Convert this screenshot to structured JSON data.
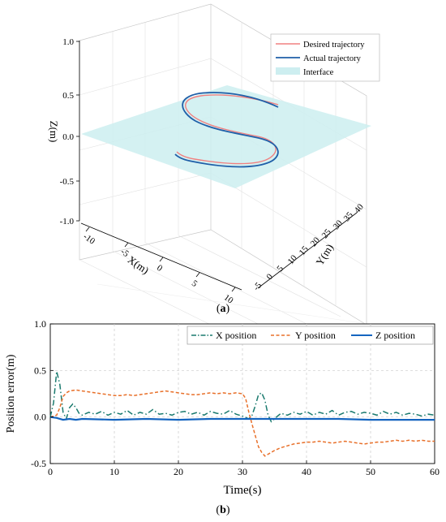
{
  "chart_data": [
    {
      "panel": "(a)",
      "type": "line3d",
      "legend": [
        "Desired trajectory",
        "Actual trajectory",
        "Interface"
      ],
      "legend_position": "top-right",
      "xlabel": "X(m)",
      "ylabel": "Y(m)",
      "zlabel": "Z(m)",
      "x_ticks": [
        "-10",
        "-5",
        "0",
        "5",
        "10"
      ],
      "y_ticks": [
        "-5",
        "0",
        "5",
        "10",
        "15",
        "20",
        "25",
        "30",
        "35",
        "40"
      ],
      "z_ticks": [
        "-1.0",
        "-0.5",
        "0.0",
        "0.5",
        "1.0"
      ],
      "xlim": [
        -10,
        10
      ],
      "ylim": [
        -5,
        40
      ],
      "zlim": [
        -1.0,
        1.0
      ],
      "interface_z": 0.0,
      "colors": {
        "desired": "#f08080",
        "actual": "#1f5fa8",
        "interface": "#cdeef0"
      },
      "series": [
        {
          "name": "Desired trajectory",
          "x": [
            -5.0,
            0.0,
            5.0,
            8.5,
            10.0,
            8.5,
            5.0,
            0.0,
            -5.0,
            -8.5,
            -10.0,
            -8.5,
            -5.0,
            0.0,
            5.0
          ],
          "y": [
            3.0,
            3.2,
            4.0,
            6.3,
            9.5,
            12.7,
            15.0,
            17.0,
            19.0,
            21.3,
            24.5,
            27.7,
            30.0,
            31.5,
            33.0
          ],
          "z": [
            -0.3,
            -0.3,
            -0.28,
            -0.2,
            -0.05,
            0.1,
            0.2,
            0.25,
            0.3,
            0.36,
            0.42,
            0.48,
            0.52,
            0.55,
            0.58
          ]
        },
        {
          "name": "Actual trajectory",
          "x": [
            -5.0,
            0.0,
            5.2,
            8.8,
            10.3,
            8.7,
            5.1,
            0.0,
            -5.2,
            -8.8,
            -10.3,
            -8.6,
            -5.0,
            0.0,
            5.0
          ],
          "y": [
            3.0,
            3.1,
            3.9,
            6.2,
            9.6,
            12.8,
            15.1,
            17.0,
            18.9,
            21.2,
            24.6,
            27.8,
            30.1,
            31.6,
            33.0
          ],
          "z": [
            -0.27,
            -0.25,
            -0.22,
            -0.12,
            0.02,
            0.15,
            0.25,
            0.32,
            0.38,
            0.44,
            0.5,
            0.56,
            0.6,
            0.62,
            0.63
          ]
        }
      ]
    },
    {
      "panel": "(b)",
      "type": "line",
      "xlabel": "Time(s)",
      "ylabel": "Position error(m)",
      "xlim": [
        0,
        60
      ],
      "ylim": [
        -0.5,
        1.0
      ],
      "x_ticks": [
        0,
        10,
        20,
        30,
        40,
        50,
        60
      ],
      "y_ticks": [
        -0.5,
        0.0,
        0.5,
        1.0
      ],
      "grid": true,
      "legend_position": "top-right",
      "series": [
        {
          "name": "X position",
          "color": "#1a7a6e",
          "style": "dashdot",
          "x": [
            0,
            0.5,
            1.0,
            1.5,
            2.0,
            2.5,
            3.0,
            3.5,
            4.0,
            4.5,
            5.0,
            6,
            7,
            8,
            9,
            10,
            11,
            12,
            13,
            14,
            15,
            16,
            17,
            18,
            19,
            20,
            21,
            22,
            23,
            24,
            25,
            26,
            27,
            28,
            29,
            30,
            31,
            31.5,
            32,
            32.5,
            33,
            33.5,
            34,
            34.5,
            35,
            35.5,
            36,
            37,
            38,
            39,
            40,
            41,
            42,
            43,
            44,
            45,
            46,
            47,
            48,
            49,
            50,
            51,
            52,
            53,
            54,
            55,
            56,
            57,
            58,
            59,
            60
          ],
          "y": [
            0.0,
            0.15,
            0.49,
            0.35,
            0.05,
            -0.02,
            0.1,
            0.14,
            0.1,
            0.04,
            0.02,
            0.05,
            0.03,
            0.06,
            0.02,
            0.05,
            0.03,
            0.07,
            0.02,
            0.05,
            0.03,
            0.08,
            0.03,
            0.04,
            0.02,
            0.05,
            0.06,
            0.03,
            0.05,
            0.02,
            0.06,
            0.04,
            0.03,
            0.07,
            0.03,
            0.01,
            -0.02,
            0.02,
            0.12,
            0.24,
            0.26,
            0.18,
            0.02,
            -0.05,
            -0.02,
            0.01,
            0.04,
            0.02,
            0.05,
            0.03,
            0.06,
            0.02,
            0.05,
            0.03,
            0.07,
            0.02,
            0.05,
            0.06,
            0.03,
            0.05,
            0.04,
            0.02,
            0.06,
            0.03,
            0.05,
            0.02,
            0.04,
            0.03,
            0.01,
            0.03,
            0.02
          ]
        },
        {
          "name": "Y position",
          "color": "#e8702a",
          "style": "dashed",
          "x": [
            0,
            1,
            1.5,
            2,
            2.5,
            3,
            4,
            5,
            6,
            7,
            8,
            9,
            10,
            11,
            12,
            13,
            14,
            15,
            16,
            17,
            18,
            19,
            20,
            21,
            22,
            23,
            24,
            25,
            26,
            27,
            28,
            29,
            30,
            30.5,
            31,
            31.5,
            32,
            32.5,
            33,
            33.5,
            34,
            35,
            36,
            37,
            38,
            39,
            40,
            41,
            42,
            43,
            44,
            45,
            46,
            47,
            48,
            49,
            50,
            51,
            52,
            53,
            54,
            55,
            56,
            57,
            58,
            59,
            60
          ],
          "y": [
            0.0,
            0.02,
            0.1,
            0.22,
            0.26,
            0.28,
            0.29,
            0.28,
            0.27,
            0.26,
            0.25,
            0.24,
            0.23,
            0.23,
            0.24,
            0.23,
            0.24,
            0.25,
            0.26,
            0.27,
            0.28,
            0.27,
            0.26,
            0.25,
            0.24,
            0.24,
            0.25,
            0.26,
            0.25,
            0.26,
            0.25,
            0.26,
            0.25,
            0.2,
            0.05,
            -0.08,
            -0.2,
            -0.32,
            -0.38,
            -0.42,
            -0.4,
            -0.36,
            -0.33,
            -0.31,
            -0.29,
            -0.28,
            -0.27,
            -0.27,
            -0.26,
            -0.27,
            -0.28,
            -0.27,
            -0.26,
            -0.27,
            -0.28,
            -0.29,
            -0.28,
            -0.27,
            -0.27,
            -0.26,
            -0.25,
            -0.26,
            -0.25,
            -0.26,
            -0.25,
            -0.26,
            -0.26
          ]
        },
        {
          "name": "Z position",
          "color": "#1565c0",
          "style": "solid",
          "x": [
            0,
            1,
            2,
            3,
            4,
            5,
            10,
            15,
            20,
            25,
            30,
            35,
            40,
            45,
            50,
            55,
            60
          ],
          "y": [
            0.0,
            -0.01,
            -0.03,
            -0.02,
            -0.03,
            -0.02,
            -0.03,
            -0.02,
            -0.03,
            -0.02,
            -0.02,
            -0.02,
            -0.02,
            -0.02,
            -0.03,
            -0.03,
            -0.03
          ]
        }
      ]
    }
  ]
}
